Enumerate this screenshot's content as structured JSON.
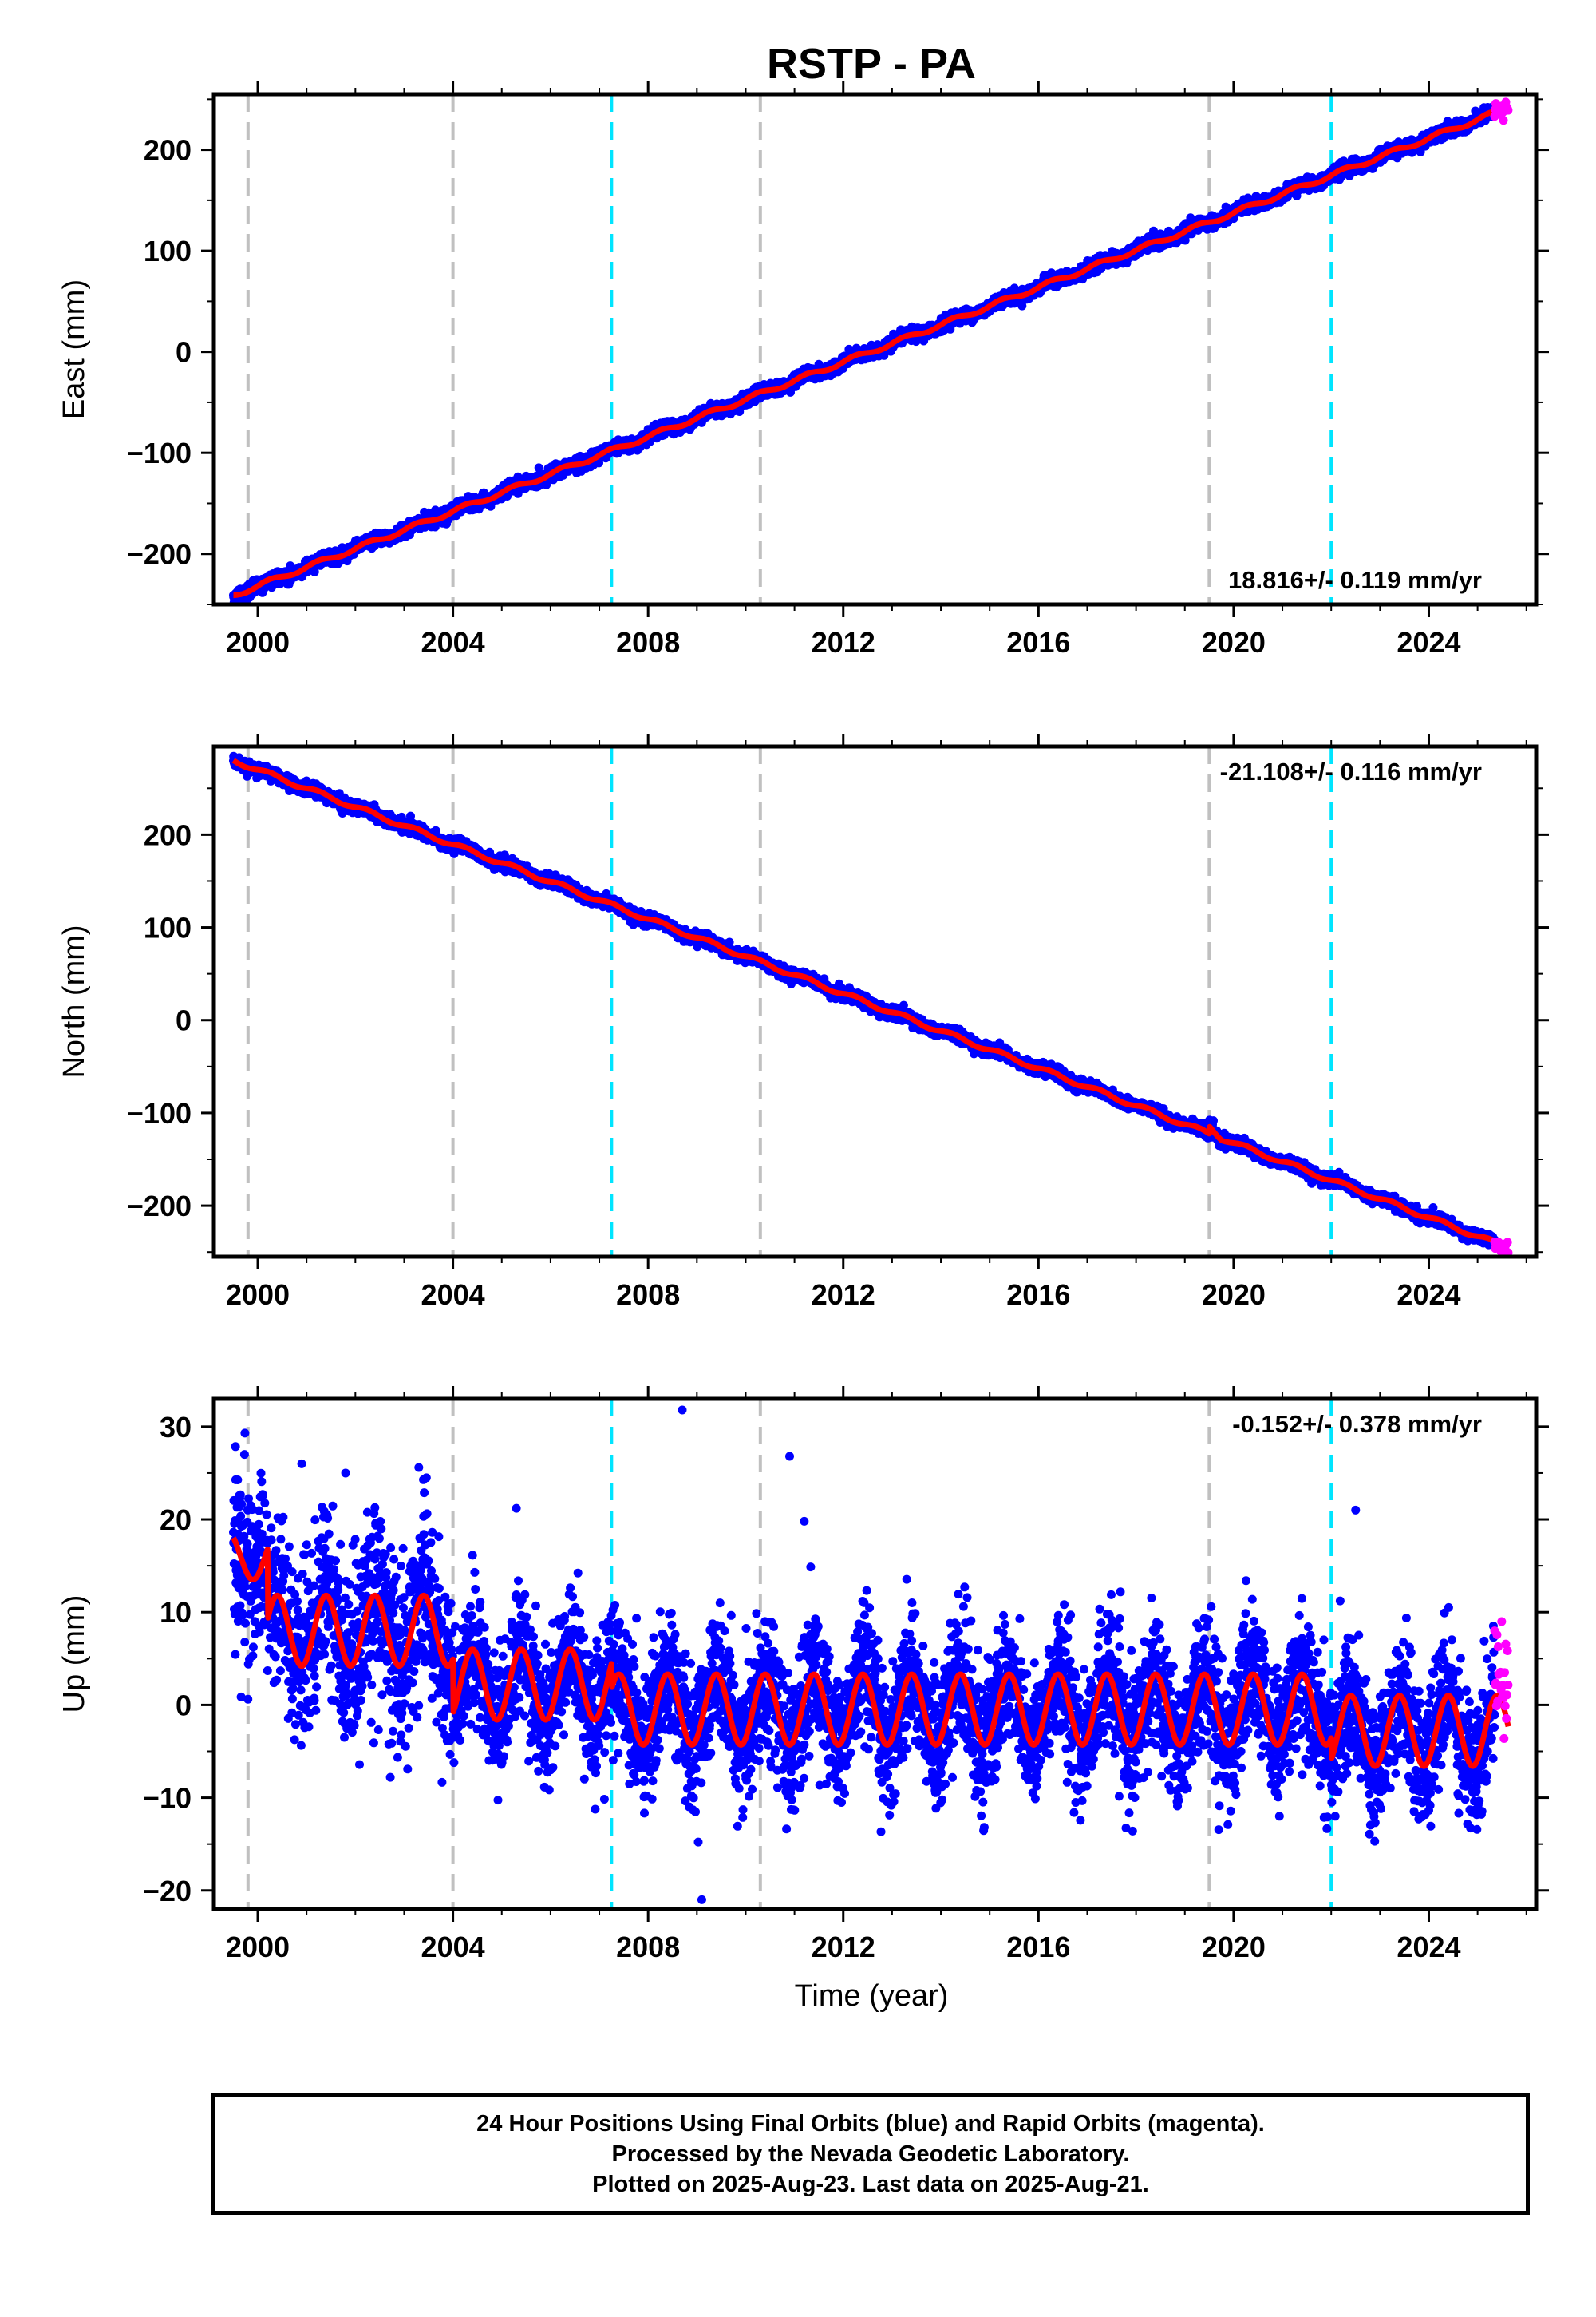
{
  "title": "RSTP - PA",
  "xlabel": "Time (year)",
  "footer": {
    "line1": "24 Hour Positions Using Final Orbits (blue) and Rapid Orbits (magenta).",
    "line2": "Processed by the Nevada Geodetic Laboratory.",
    "line3": "Plotted on 2025-Aug-23. Last data on 2025-Aug-21."
  },
  "colors": {
    "final_orbits": "#0000ff",
    "rapid_orbits": "#ff00ff",
    "model_fit": "#ff0000",
    "event_equipment": "#c0c0c0",
    "event_earthquake": "#00e5ff"
  },
  "chart_data": [
    {
      "type": "scatter",
      "component": "East",
      "ylabel": "East (mm)",
      "xlim": [
        1999.1,
        2026.2
      ],
      "ylim": [
        -250,
        255
      ],
      "xticks": [
        2000,
        2004,
        2008,
        2012,
        2016,
        2020,
        2024
      ],
      "yticks": [
        -200,
        -100,
        0,
        100,
        200
      ],
      "rate_label": "18.816+/- 0.119 mm/yr",
      "rate_position": "bottom-right",
      "rate": 18.816,
      "trend": {
        "x": [
          1999.5,
          2025.6
        ],
        "y": [
          -241,
          241
        ]
      },
      "scatter_noise_mm": 3,
      "rapid_orbits": {
        "x_range": [
          2025.35,
          2025.63
        ],
        "y_center": 240,
        "noise_mm": 4
      },
      "vlines": [
        {
          "x": 1999.8,
          "kind": "equipment"
        },
        {
          "x": 2004.0,
          "kind": "equipment"
        },
        {
          "x": 2007.25,
          "kind": "earthquake"
        },
        {
          "x": 2010.3,
          "kind": "equipment"
        },
        {
          "x": 2019.5,
          "kind": "equipment"
        },
        {
          "x": 2022.0,
          "kind": "earthquake"
        }
      ]
    },
    {
      "type": "scatter",
      "component": "North",
      "ylabel": "North (mm)",
      "xlim": [
        1999.1,
        2026.2
      ],
      "ylim": [
        -255,
        295
      ],
      "xticks": [
        2000,
        2004,
        2008,
        2012,
        2016,
        2020,
        2024
      ],
      "yticks": [
        -200,
        -100,
        0,
        100,
        200
      ],
      "rate_label": "-21.108+/- 0.116 mm/yr",
      "rate_position": "top-right",
      "rate": -21.108,
      "trend": {
        "x": [
          1999.5,
          2025.6
        ],
        "y": [
          280,
          -245
        ]
      },
      "step": {
        "x": 2019.5,
        "size_mm": 8
      },
      "scatter_noise_mm": 3,
      "rapid_orbits": {
        "x_range": [
          2025.35,
          2025.63
        ],
        "y_center": -243,
        "noise_mm": 4
      },
      "vlines": [
        {
          "x": 1999.8,
          "kind": "equipment"
        },
        {
          "x": 2004.0,
          "kind": "equipment"
        },
        {
          "x": 2007.25,
          "kind": "earthquake"
        },
        {
          "x": 2010.3,
          "kind": "equipment"
        },
        {
          "x": 2019.5,
          "kind": "equipment"
        },
        {
          "x": 2022.0,
          "kind": "earthquake"
        }
      ]
    },
    {
      "type": "scatter",
      "component": "Up",
      "ylabel": "Up (mm)",
      "xlim": [
        1999.1,
        2026.2
      ],
      "ylim": [
        -22,
        33
      ],
      "xticks": [
        2000,
        2004,
        2008,
        2012,
        2016,
        2020,
        2024
      ],
      "yticks": [
        -20,
        -10,
        0,
        10,
        20,
        30
      ],
      "rate_label": "-0.152+/- 0.378 mm/yr",
      "rate_position": "top-right",
      "rate": -0.152,
      "model_segments": [
        {
          "x": [
            1999.5,
            2000.2
          ],
          "offset": 16,
          "amp": 2.5
        },
        {
          "x": [
            2000.2,
            2004.0
          ],
          "offset": 8,
          "amp": 3.8
        },
        {
          "x": [
            2004.0,
            2007.25
          ],
          "offset": 2.2,
          "amp": 3.8
        },
        {
          "x": [
            2007.25,
            2022.0
          ],
          "offset": -0.5,
          "amp": 3.8
        },
        {
          "x": [
            2022.0,
            2025.63
          ],
          "offset": -2.8,
          "amp": 3.8
        }
      ],
      "scatter_noise_mm": 3.5,
      "rapid_orbits": {
        "x_range": [
          2025.35,
          2025.63
        ],
        "y_center": 3,
        "noise_mm": 4
      },
      "outliers": [
        {
          "x": 2008.7,
          "y": 31.8
        },
        {
          "x": 2010.9,
          "y": 26.8
        },
        {
          "x": 2000.9,
          "y": 26
        },
        {
          "x": 2003.3,
          "y": 25.6
        },
        {
          "x": 2009.1,
          "y": -21
        },
        {
          "x": 2001.8,
          "y": 25
        },
        {
          "x": 2005.3,
          "y": 21.2
        },
        {
          "x": 2022.5,
          "y": 21
        },
        {
          "x": 2011.2,
          "y": 19.8
        }
      ],
      "vlines": [
        {
          "x": 1999.8,
          "kind": "equipment"
        },
        {
          "x": 2004.0,
          "kind": "equipment"
        },
        {
          "x": 2007.25,
          "kind": "earthquake"
        },
        {
          "x": 2010.3,
          "kind": "equipment"
        },
        {
          "x": 2019.5,
          "kind": "equipment"
        },
        {
          "x": 2022.0,
          "kind": "earthquake"
        }
      ]
    }
  ]
}
